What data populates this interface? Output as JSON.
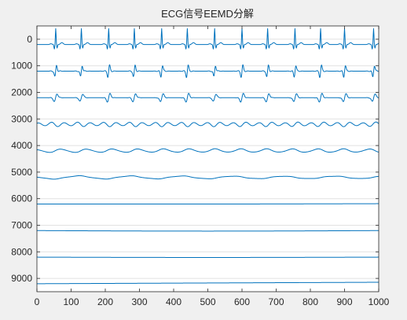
{
  "chart_data": {
    "type": "line",
    "title": "ECG信号EEMD分解",
    "xlabel": "",
    "ylabel": "",
    "xlim": [
      0,
      1000
    ],
    "ylim": [
      9500,
      -500
    ],
    "y_direction": "reversed",
    "grid": {
      "x": false,
      "y": true
    },
    "x_ticks": [
      0,
      100,
      200,
      300,
      400,
      500,
      600,
      700,
      800,
      900,
      1000
    ],
    "y_ticks": [
      0,
      1000,
      2000,
      3000,
      4000,
      5000,
      6000,
      7000,
      8000,
      9000
    ],
    "line_color": "#0072bd",
    "beat_positions": [
      55,
      130,
      210,
      285,
      365,
      440,
      520,
      600,
      675,
      755,
      830,
      900,
      985
    ],
    "series": [
      {
        "index": 1,
        "offset": 0,
        "form": "ecg_beats",
        "amplitude": 600
      },
      {
        "index": 2,
        "offset": 1000,
        "form": "biphasic_beats",
        "amplitude": 220
      },
      {
        "index": 3,
        "offset": 2000,
        "form": "biphasic_beats",
        "amplitude": 150
      },
      {
        "index": 4,
        "offset": 3000,
        "form": "oscillation",
        "amplitude": 90,
        "period": 38
      },
      {
        "index": 5,
        "offset": 4000,
        "form": "oscillation",
        "amplitude": 80,
        "period": 75
      },
      {
        "index": 6,
        "offset": 5000,
        "form": "oscillation",
        "amplitude": 70,
        "period": 150
      },
      {
        "index": 7,
        "offset": 6000,
        "form": "slow_drift",
        "amplitude": 20
      },
      {
        "index": 8,
        "offset": 7000,
        "form": "slow_drift",
        "amplitude": 20
      },
      {
        "index": 9,
        "offset": 8000,
        "form": "slow_drift",
        "amplitude": 12
      },
      {
        "index": 10,
        "offset": 9000,
        "form": "slow_drift",
        "amplitude": 55
      }
    ]
  }
}
